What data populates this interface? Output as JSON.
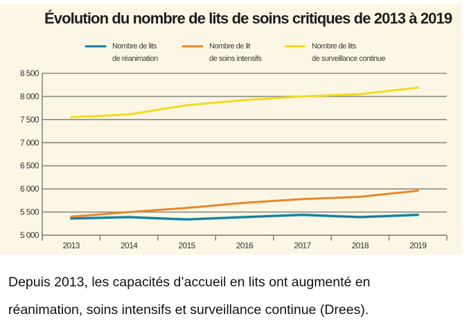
{
  "chart_data": {
    "type": "line",
    "title": "Évolution du nombre de lits de soins critiques de 2013 à 2019",
    "xlabel": "",
    "ylabel": "",
    "x": [
      "2013",
      "2014",
      "2015",
      "2016",
      "2017",
      "2018",
      "2019"
    ],
    "ylim": [
      5000,
      8500
    ],
    "yticks": [
      5000,
      5500,
      6000,
      6500,
      7000,
      7500,
      8000,
      8500
    ],
    "ytick_labels": [
      "5 000",
      "5 500",
      "6 000",
      "6 500",
      "7 000",
      "7 500",
      "8 000",
      "8 500"
    ],
    "grid": true,
    "legend_position": "top-center",
    "series": [
      {
        "name": "Nombre de lits de réanimation",
        "legend_lines": [
          "Nombre de lits",
          "de réanimation"
        ],
        "color": "#1a7a9a",
        "values": [
          5360,
          5390,
          5340,
          5390,
          5440,
          5390,
          5440
        ]
      },
      {
        "name": "Nombre de lit de soins intensifs",
        "legend_lines": [
          "Nombre de lit",
          "de soins intensifs"
        ],
        "color": "#e8862a",
        "values": [
          5400,
          5500,
          5590,
          5700,
          5780,
          5830,
          5960
        ]
      },
      {
        "name": "Nombre de lits de surveillance continue",
        "legend_lines": [
          "Nombre de lits",
          "de surveillance continue"
        ],
        "color": "#f2dc1c",
        "values": [
          7550,
          7610,
          7810,
          7920,
          8000,
          8050,
          8190
        ]
      }
    ]
  },
  "caption": {
    "line1": "Depuis 2013, les capacités d’accueil en lits ont augmenté en",
    "line2": "réanimation, soins intensifs et surveillance continue (Drees)."
  },
  "colors": {
    "panel_background": "#fcf7e4",
    "gridline": "#8a8a80"
  }
}
